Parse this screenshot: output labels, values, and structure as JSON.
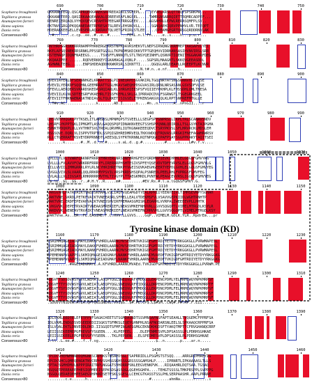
{
  "species": [
    "Scapharca broughtonii",
    "Tegillarca granosa",
    "Azumapecten farreri",
    "Homo sapiens",
    "Danio rerio",
    "Consensus>80"
  ],
  "domain_label": "Tyrosine kinase domain (KD)",
  "colors": {
    "identical": "#e8102a",
    "similar_box": "#2d3db4",
    "text": "#000000",
    "dash": "#000000"
  },
  "blocks": [
    {
      "ticks": [
        "690",
        "700",
        "710",
        "720",
        "730",
        "740",
        "750"
      ],
      "rows": [
        "QKKANETEGQ.QSCAPRQEKKAAEKSRPREEAIRCLSGFEPL.....EYVELKRSLQTTRQYSPSRKPW...",
        "QKKANETEEQ.QASIRKAAQEAAKALQDREEVEAFLNGSEL.....TWMRGNSARRQIETTRQMRCADPEF...",
        "RENREIERQAQLVYHQVQEVCREAHTRPEEGARTRRGGEEV.....AGSAHRLLEPWLRERASQMFPLSV..",
        "PKTNVCGRGQPKQQANEDAETRPRESATSLREVLEHSNQVLL.....SGNQAEHIQRVPPNHVLVR.TEEQPT",
        "HDERAKKEEGELLEVRSERLAQGKRAVTQLVETGFRIRLSTLEE.....QPEAMGEGRTQRSGQRDDRNVLAK",
        "..#........c.cp..ee..#..e..#........FE%L.n.l.Fn.....e..s....h...p.u.r..."
      ]
    },
    {
      "ticks": [
        "760",
        "770",
        "780",
        "790",
        "800",
        "810",
        "820",
        "830"
      ],
      "rows": [
        "RNTHRPGGRSKKRRRNAMPPHRKERGEKRSTNPKDAVRSHEKVTLNEPSIRNQNGSKRMMEPTAASAPVLYEI",
        "NKELAPSQSNEKRRSRNKLPPSSRTGGSLLTKPNDMSKDIKKVTPTGEQHVVIDRNANSASIHVNVIRSLSRR",
        "RSTEMAQPIDQNFNAEEGS.....TSVSFFLNNNQTLSTLTNSYQEINHFLQSNVRTIQENITHGGAKARFDEG",
        "KKQAAIPEE.......RQDVERKKEYIGKAMAGALVQNLP.....SGPSRLMAAGNTLSKKQVGEEASDDL",
        "AGHWNLTEEG......ENPSHDEAQDDKKWKRSRLSIKNTTI.....QGQGLARLDEAPLLRQEEPTLKCNVR",
        "..........................................N.t#.n..e.nf.....h.........."
      ]
    },
    {
      "ticks": [
        "840",
        "850",
        "860",
        "870",
        "880",
        "890",
        "900"
      ],
      "rows": [
        "HVEVIAYERLDFSEKNNHGELKRRATTSSLPISNEQRPDSGVAKIRLTGQLNRTATSNGSGNNVHSIVLSE",
        "HVEVILYERKDFSQQHNLGEEMRRATTGSLHKAVSWEQHPDSGVASIRLQRNLNRSASANLGSVSDFVLSE",
        "DFEVLLAERQERSVRARDSKEDASRQIARLKLSHRGHIEESPSFVQIIEYPKHPLKLFHSSDHLQMLTNESA",
        "SVEVIILKLNLSDTEEGRFVKAEHRLTISSFKEMLLSKLGLIPRRADCDVLFSGRWGTLTSGEGRKGEEL",
        "ATEVIITFNKNAENASKTNDIAVSLTQLRKETISIGSELETPKENSAKGVLQLKLRPTSNPREFMTGLLE",
        "..T#v.AC..............k.......AD.I......s....#n..n.......A..nPnGII....r"
      ]
    },
    {
      "ticks": [
        "910",
        "920",
        "930",
        "940",
        "950",
        "960",
        "970",
        "980",
        "990"
      ],
      "rows": [
        "LHSVNTPHQGKLPYTKSELITLARGDSLMPNMQPSTSVEELLLSEGPSPYGNPRSLLIKPLTRLSCANAVSNDV",
        "LHSRFGYKPPTGKLIPMGMTLASVLGAQQSPQPIDNAKNVEEGTSSHSPPQNNLQDIRQLLTSLGSYKTAIPGMA",
        "EVNKTPDQKPLVLLVVTHNTSVLTREALQRVMRLIQTKGNAKEEEQDVCTSRYPKVSLSFLHRVRCKLMDSLEM",
        "NSGSQVE.DQRLVLISPPVTRPTDLSSPQIGDHREDMRVEQLTKKVWDQQTRQVASLRRGKIFNEFAGWHRWRSV",
        "RLLCTGERRAFTKSVEYDRPRNNDTLAEESQLSYFRTKRNNLKQTNPQGKIPAFPSAYSGGPPKAKYTAQITSEI",
        ".......k.......#..M..d..n.#.....s.aL.d..g.#..........#.....s....L#v.f.v...."
      ]
    },
    {
      "ticks": [
        "1000",
        "1010",
        "1020",
        "1030",
        "1040",
        "1050",
        "1060",
        "1070"
      ],
      "rows": [
        "LVLLLTLVLTVWRFCAKNRFRKRYFMRYERLNRSDNFHRHGFESYQRDMRPIEVKIHMHLELGQGSFGMVYKG",
        "LVLLLLFVLAVVFCWRKRRFRRRYFLIRERRRPHSHTESIVSPFEYQSEVDVTDFEVRVSLELGQGSFGMVYLG",
        "IILLVVIILIMMGRRKLRYLRLNCYHRIHRETNKPYVGEISQVKAEGHGEERTYEPDLGVHLELGQGSFGMVYEG",
        "LVGGLVIVLSLVAARLQQLRRKRMYPSVILVRSPKRDSHSQPALPSNREDLPEELRHLFVPRGSFGMVFEG",
        "LVLALLLVLIIGSAYLRHKRRRRMVTHLTIVGYPLTTAEGKMKDLPVNTWLPEAGCEVVRSLIGQGSFGMVYEG",
        "L$.lL..$L..$$..r..#.H.Y..R.....m#..........#EV.Rs.#.l.a.lGQGSFGMVY.G."
      ]
    },
    {
      "ticks": [
        "1080",
        "1090",
        "1100",
        "1110",
        "1120",
        "1130",
        "1140",
        "1150"
      ],
      "rows": [
        "VAKGVAHLPATRVAIKTVNEDSKHAALVSLIAQFVQEAMGDTYEALRPRIIYEENYEIVLTIMMSEVNPYSGHAH",
        "VAKTVNE.SKRDLPETKFVAIKTVNEEASRLSFMELLEALVTDEKMSFVLVSAVVGEPKIIDLWGHTRNHTP",
        "MAKTVRE.ERDFEPEVAHVAIKTVNEDSHVIRFMEMAASGMISRLEQARRLVVRPALIWEEEEVPLLHHTK",
        "LVKGVVK.DEPETRVAIKTVNEAASMRERIEFLNEASVMKEFNHVVRLLGVVSQGQPTLVIMELMTRGDLKSYLR",
        "VAKDVVK.NENEAVTRVAIKTVNEASMRERIEFLNEASVMKEFNCHHVVRLLGVVSQGQPTLVIMELMTRGDLKSY",
        "VAKTVne.As..ER..FL.EASIME.F.C.HVV.LLGVVS....GqP..VIMELM.GDLK.YLR..RpdrEm...pr"
      ]
    },
    {
      "ticks": [
        "1160",
        "1170",
        "1180",
        "1190",
        "1200",
        "1210",
        "1220",
        "1230"
      ],
      "rows": [
        "SSRIMMQAGEIADGMAYLDAKKFVHRDLAARNCMVSEDHRTVKIGDFGMTRDIYETDYYRKGGKGLLPVRWMAPESL",
        "SSRIMMQAGEIADGMAYLDAKKFVHRDLAARNCMVSEDHRTVKIGDFGMTRDIYETDYYRKGGKGLLPVRWMAPESL",
        "HSRIMMQAGEIADGMAYLNANKFVHRDLAARNCMVSEDHRTVKIGDFGMTRDIYETDYYRKGGKGLLPVRWMAPESL",
        "APEMENNPVLAPPSLSKMIQMAGEIADGMAYLNANKFVHRDLAARNCMVAEDFTVKIGDFGMTRDIYETDYYRKGGKG",
        "APEMENNPVLAPPSLSKMIQMAGEIADGMAYLNANKFVHRDLAARNCMVAEDFTVKIGDFGMTRDIYETDYYRKGGKG",
        "..........#AGEIADGMAYL.A.KFVHRDLAARNCMVAEd.TVKIGDFGMTRDIYETDYYRKGGKGLLPVRWM.PE"
      ]
    },
    {
      "ticks": [
        "1240",
        "1250",
        "1260",
        "1270",
        "1280",
        "1290",
        "1300",
        "1310"
      ],
      "rows": [
        "KDGVFTSDSDVWSYGVVLWEMATLASQPYQGLSNEQVLRFVMDGGILEKPENCPDMLYELMRMCWQYNPKMRPSF",
        "KDGVFTTYSDVWSYGVVLWEIATLAEQPYQGLSNEQVLRFVIDGGLLDRPENCPDMLFELMRMCWQYNPKMRPTF",
        "KDGVFTSYSDVWSFGVVLWEIATLAEQPYQGLSNEQVLRFVMDGGLLEKPDNCPDMLFELMRMCWQYNPKMRPSF",
        "KDGVFTTYSDVWSFGVVLWEIATLAEQPYQGLSNEQVLRFVMEGGLLDKPDNCPDMLFELMRMCWQYNPKMRPSF",
        "KDGVFTTYSDVWSFGVVLWEIATLAEQPYQGLSNEQVLRFVMEGGLLDKPDNCPDMLFELMRMCWQYNPKMRPSF",
        ".SDGVVTNSDVW.ATLA.QPYQGSSNEVL.VV1$G..$#.PE.CP$.L$#SM..CWQ#.P#.RP.F.EII......."
      ]
    },
    {
      "ticks": [
        "1320",
        "1330",
        "1340",
        "1350",
        "1360",
        "1370",
        "1380",
        "1390"
      ],
      "rows": [
        "IDLVKMLEEDTELEFETFPVFSAGKCHEETSTSGMDASNDTSSVMNSAFNSFAPTSEAHLLTVQGEMCFPPRFSA",
        "IDLVAMLENDGDSVDSEEDEDIISGKSTSFMKSLEQEYGHNPHLNSAFNQDARSNLEELSLSPKAAQCRPPRFSA",
        "ISLVQALEKTLDNVEDDLDKD.IISGQDTSFMFINGAESGMGCEKNDKHQDSFTYAKQTMPTTCFRVGHANQCRRF",
        "LEIISSIKEEMEPGFREVSFYSGEEN....KLPEPEEL....DLEPENMESVPLDPSASSSLPLPDRHSGHKAE",
        "LEIISSIKEELEPGFREVSFYYSEEN...TKLPEPQEN...ELSPEDMESVPLDPSASSSLPLPDRHSGHKAE",
        "I.ll..L.ee.#....f..f.sg...........e..............$..n.......p....ar.n....."
      ]
    },
    {
      "ticks": [
        "1410",
        "1420",
        "1430",
        "1440",
        "1450",
        "1460"
      ],
      "rows": [
        "EPCDCVHEMWMNNDDQMGNKSCRPDKSTNSAPDSGLTSAPRRIDLLPSGMSTSTSQQ....ARRGRIPMAHYIG",
        "EPCDCVHCLQMEQDNGKTNVCRPHVSSHSGSKHSSGGRSSSSGAMSHLP.....IPRNRTLIPKAAAASLTLLS",
        "EPTACSGMHDMVLNPPPIRAITRPLNGGATSVHDRRPSNLEEGVENKPVK...RIQAAHRLDQTSAA.TGSAQ",
        "NSQSQTPEREAEEPHESIQPMEEISEPKSDSASSQGLQGEHSGHPA....TEHGTSSSSLTMKPRSPPLSVPPPG",
        "NSGQLQEDAEQEHPESAEGVHPKKDSETFSKLSGESLLCEHCGTKASSTSSLPHLSERPAASHR.AAPLPRRAE",
        "........c.e......h..........s.................#........ahmNa......r......s"
      ]
    }
  ]
}
